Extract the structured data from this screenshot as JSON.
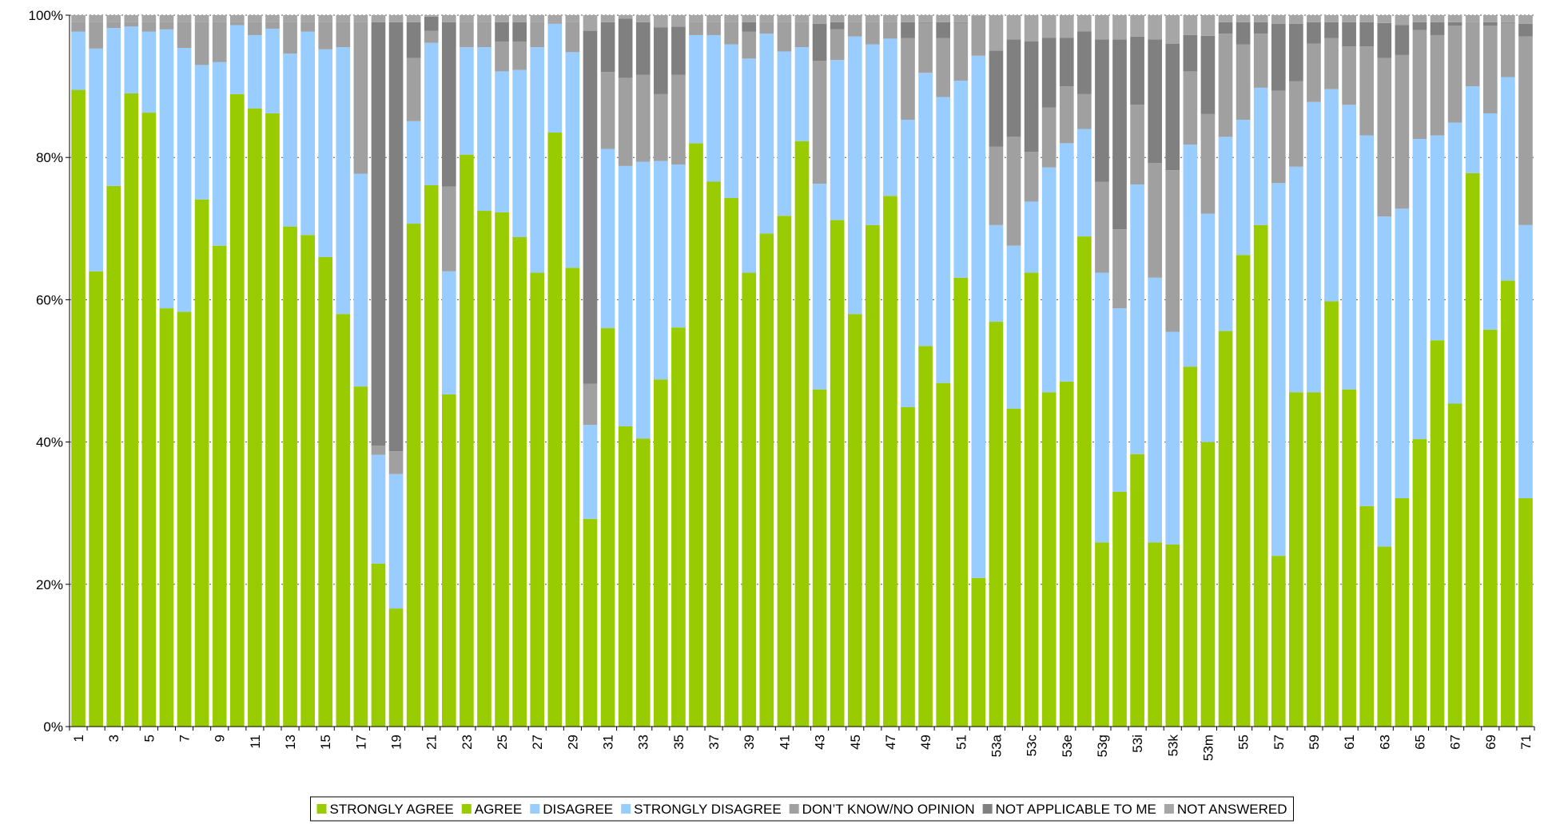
{
  "chart_data": {
    "type": "stacked_bar",
    "categories": [
      "1",
      null,
      "3",
      null,
      "5",
      null,
      "7",
      null,
      "9",
      null,
      "11",
      null,
      "13",
      null,
      "15",
      null,
      "17",
      null,
      "19",
      null,
      "21",
      null,
      "23",
      null,
      "25",
      null,
      "27",
      null,
      "29",
      null,
      "31",
      null,
      "33",
      null,
      "35",
      null,
      "37",
      null,
      "39",
      null,
      "41",
      null,
      "43",
      null,
      "45",
      null,
      "47",
      null,
      "49",
      null,
      "51",
      null,
      "53a",
      null,
      "53c",
      null,
      "53e",
      null,
      "53g",
      null,
      "53i",
      null,
      "53k",
      null,
      "53m",
      null,
      "55",
      null,
      "57",
      null,
      "59",
      null,
      "61",
      null,
      "63",
      null,
      "65",
      null,
      "67",
      null,
      "69",
      null,
      "71"
    ],
    "series": [
      {
        "name": "STRONGLY AGREE",
        "color": "#99cc00",
        "values": [
          89.5,
          64,
          76,
          89,
          86.3,
          58.8,
          58.3,
          74.1,
          67.6,
          88.9,
          86.9,
          86.2,
          70.3,
          69.1,
          66,
          58,
          47.8,
          22.9,
          16.6,
          70.7,
          76.1,
          46.7,
          80.4,
          72.5,
          72.3,
          68.8,
          63.8,
          83.5,
          64.5,
          29.2,
          56,
          42.2,
          40.5,
          48.8,
          56.1,
          82,
          76.6,
          74.3,
          63.8,
          69.3,
          71.8,
          82.3,
          47.4,
          71.2,
          58,
          70.5,
          74.6,
          44.9,
          53.5,
          48.3,
          63.1,
          20.9,
          56.9,
          44.7,
          63.8,
          47,
          48.5,
          68.9,
          25.9,
          33,
          38.3,
          25.9,
          25.6,
          50.6,
          40,
          55.6,
          66.3,
          70.5,
          24,
          47,
          47,
          59.8,
          47.4,
          31,
          25.3,
          32.1,
          40.4,
          54.3,
          45.4,
          77.8,
          55.8,
          62.7,
          32.1
        ]
      },
      {
        "name": "AGREE",
        "color": "#99cc00",
        "values": [
          0,
          0,
          0,
          0,
          0,
          0,
          0,
          0,
          0,
          0,
          0,
          0,
          0,
          0,
          0,
          0,
          0,
          0,
          0,
          0,
          0,
          0,
          0,
          0,
          0,
          0,
          0,
          0,
          0,
          0,
          0,
          0,
          0,
          0,
          0,
          0,
          0,
          0,
          0,
          0,
          0,
          0,
          0,
          0,
          0,
          0,
          0,
          0,
          0,
          0,
          0,
          0,
          0,
          0,
          0,
          0,
          0,
          0,
          0,
          0,
          0,
          0,
          0,
          0,
          0,
          0,
          0,
          0,
          0,
          0,
          0,
          0,
          0,
          0,
          0,
          0,
          0,
          0,
          0,
          0,
          0,
          0,
          0
        ]
      },
      {
        "name": "DISAGREE",
        "color": "#99ccff",
        "values": [
          8.2,
          31.3,
          22.2,
          9.4,
          11.4,
          39.2,
          37.1,
          18.9,
          25.8,
          9.7,
          10.3,
          11.9,
          24.3,
          28.6,
          29.2,
          37.5,
          29.9,
          15.3,
          18.9,
          14.4,
          20,
          17.3,
          15.1,
          23,
          19.8,
          23.5,
          31.7,
          15.3,
          30.3,
          13.2,
          25.2,
          36.6,
          38.9,
          30.7,
          22.9,
          15.2,
          20.6,
          21.6,
          30.1,
          28.1,
          23.1,
          13.2,
          28.9,
          22.5,
          39,
          25.4,
          22.1,
          40.4,
          38.4,
          40.2,
          27.7,
          73.4,
          13.6,
          22.9,
          10,
          31.6,
          33.5,
          15.1,
          37.9,
          25.8,
          37.9,
          37.2,
          29.9,
          31.2,
          32.1,
          27.3,
          19,
          19.3,
          52.4,
          31.7,
          40.8,
          29.8,
          40,
          52.1,
          46.4,
          40.7,
          42.2,
          28.8,
          39.5,
          12.2,
          30.4,
          28.6,
          38.4
        ]
      },
      {
        "name": "STRONGLY DISAGREE",
        "color": "#99ccff",
        "values": [
          0,
          0,
          0,
          0,
          0,
          0,
          0,
          0,
          0,
          0,
          0,
          0,
          0,
          0,
          0,
          0,
          0,
          0,
          0,
          0,
          0,
          0,
          0,
          0,
          0,
          0,
          0,
          0,
          0,
          0,
          0,
          0,
          0,
          0,
          0,
          0,
          0,
          0,
          0,
          0,
          0,
          0,
          0,
          0,
          0,
          0,
          0,
          0,
          0,
          0,
          0,
          0,
          0,
          0,
          0,
          0,
          0,
          0,
          0,
          0,
          0,
          0,
          0,
          0,
          0,
          0,
          0,
          0,
          0,
          0,
          0,
          0,
          0,
          0,
          0,
          0,
          0,
          0,
          0,
          0,
          0,
          0,
          0
        ]
      },
      {
        "name": "DON’T KNOW/NO OPINION",
        "color": "#a0a0a0",
        "values": [
          1.3,
          3.7,
          0.8,
          0.6,
          1.3,
          1,
          3.6,
          6,
          5.6,
          0.4,
          1.8,
          0.9,
          4.4,
          1.3,
          3.8,
          3.5,
          21.3,
          1.3,
          3.2,
          8.9,
          1.7,
          11.9,
          3.5,
          3.5,
          4.2,
          4,
          3.5,
          0.2,
          4.2,
          5.8,
          10.8,
          12.4,
          12.2,
          9.4,
          12.6,
          1.8,
          1.8,
          3.1,
          3.8,
          1.6,
          4.1,
          3.5,
          17.3,
          4.3,
          2,
          3.1,
          2.3,
          11.5,
          7,
          8.3,
          8.1,
          5.6,
          11,
          15.3,
          7,
          8.4,
          8,
          4.9,
          12.8,
          11.1,
          11.2,
          16.1,
          22.7,
          10.3,
          14,
          14.5,
          10.6,
          7.6,
          13,
          12,
          8.2,
          7.2,
          8.2,
          12.5,
          22.3,
          21.6,
          15.3,
          14.1,
          13.6,
          9,
          12.3,
          7.6,
          26.5
        ]
      },
      {
        "name": "NOT APPLICABLE TO ME",
        "color": "#808080",
        "values": [
          0,
          0,
          0,
          0,
          0,
          0,
          0,
          0,
          0,
          0,
          0,
          0,
          0,
          0,
          0,
          0,
          0,
          59.5,
          60.3,
          5,
          2,
          23.1,
          0,
          0,
          2.7,
          2.7,
          0,
          0,
          0,
          49.6,
          7,
          8.3,
          7.4,
          9.4,
          6.8,
          0,
          0,
          0,
          1.3,
          0,
          0,
          0,
          5.2,
          1,
          0,
          0,
          0,
          2.2,
          0.1,
          2.2,
          0.1,
          0,
          13.5,
          13.7,
          15.5,
          9.8,
          6.8,
          8.8,
          20,
          26.7,
          9.6,
          17.4,
          17.8,
          5.1,
          11,
          1.6,
          3.1,
          1.6,
          9.4,
          8.1,
          3,
          2.2,
          3.4,
          3.4,
          4.9,
          4.2,
          1.1,
          1.8,
          0.5,
          0,
          0.5,
          0.1,
          1.8
        ]
      },
      {
        "name": "NOT ANSWERED",
        "color": "#a6a6a6",
        "values": [
          1,
          1,
          1,
          1,
          1,
          1,
          1,
          1,
          1,
          1,
          1,
          1,
          1,
          1,
          1,
          1,
          1,
          1,
          1,
          1,
          0.2,
          1,
          1,
          1,
          1,
          1,
          1,
          1,
          1,
          2.2,
          1,
          0.5,
          1,
          1.7,
          1.6,
          1,
          1,
          1,
          1,
          1,
          1,
          1,
          1.2,
          1,
          1,
          1,
          1,
          1,
          1,
          1,
          1,
          0.1,
          5,
          3.4,
          3.7,
          3.2,
          3.2,
          2.3,
          3.4,
          3.4,
          3,
          3.4,
          4,
          2.8,
          2.9,
          1,
          1,
          1,
          1.2,
          1.2,
          1,
          1,
          1,
          1,
          1.1,
          1.4,
          1,
          1,
          1,
          1,
          1,
          1,
          1.2
        ]
      }
    ],
    "ylim": [
      0,
      100
    ],
    "yticks": [
      {
        "value": 0,
        "label": "0%"
      },
      {
        "value": 20,
        "label": "20%"
      },
      {
        "value": 40,
        "label": "40%"
      },
      {
        "value": 60,
        "label": "60%"
      },
      {
        "value": 80,
        "label": "80%"
      },
      {
        "value": 100,
        "label": "100%"
      }
    ],
    "grid": true,
    "legend": "bottom"
  }
}
